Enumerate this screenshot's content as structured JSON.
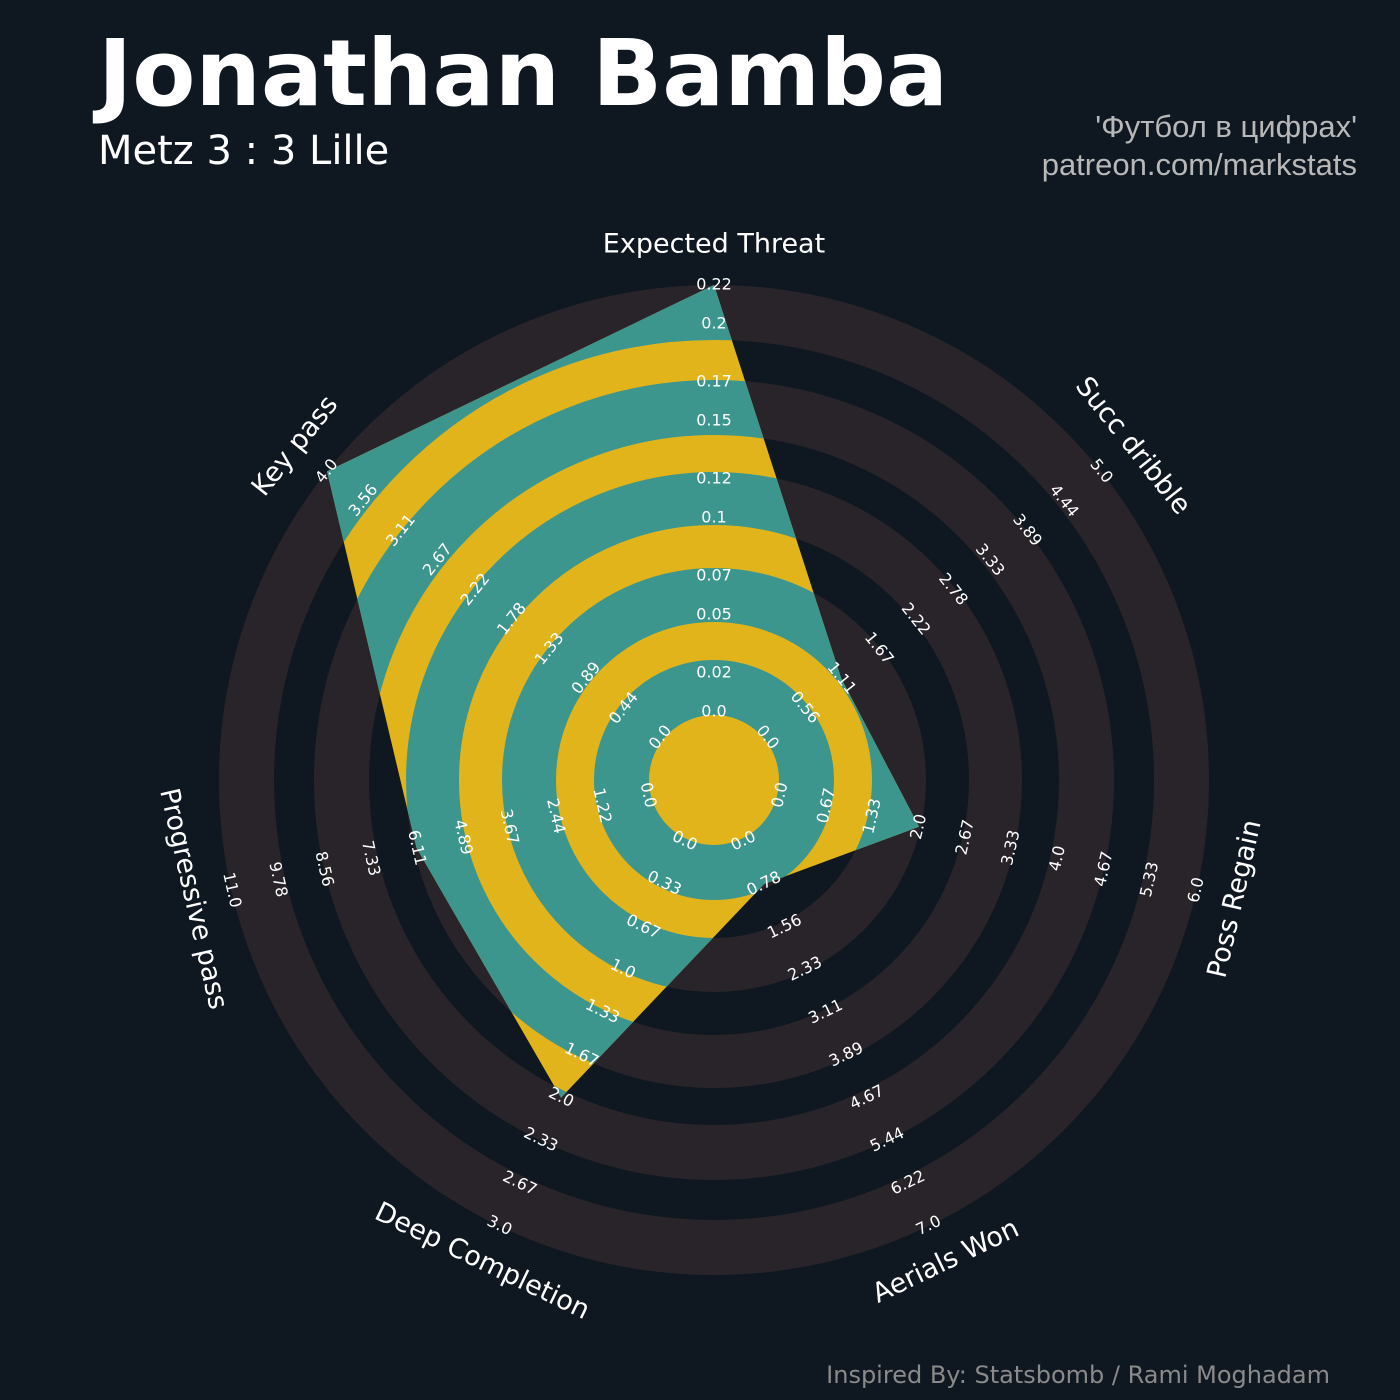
{
  "chart_data": {
    "type": "radar",
    "title": "Jonathan Bamba",
    "subtitle": "Metz 3 : 3 Lille",
    "credits": [
      "'Футбол в цифрах'",
      "patreon.com/markstats"
    ],
    "footer": "Inspired By: Statsbomb / Rami Moghadam",
    "categories": [
      "Expected Threat",
      "Succ dribble",
      "Poss Regain",
      "Aerials Won",
      "Deep Completion",
      "Progressive pass",
      "Key pass"
    ],
    "values": [
      0.22,
      1.11,
      2,
      0.78,
      2,
      6.11,
      4
    ],
    "axis_ticks": [
      [
        {
          "value": 0,
          "label": "0.0"
        },
        0.02,
        0.05,
        0.07,
        0.1,
        0.12,
        0.15,
        0.17,
        0.2,
        0.22
      ],
      [
        {
          "value": 0,
          "label": "0.0"
        },
        0.56,
        1.11,
        1.67,
        2.22,
        2.78,
        3.33,
        3.89,
        4.44,
        {
          "value": 5,
          "label": "5.0"
        }
      ],
      [
        {
          "value": 0,
          "label": "0.0"
        },
        0.67,
        1.33,
        {
          "value": 2,
          "label": "2.0"
        },
        2.67,
        3.33,
        {
          "value": 4,
          "label": "4.0"
        },
        4.67,
        5.33,
        {
          "value": 6,
          "label": "6.0"
        }
      ],
      [
        {
          "value": 0,
          "label": "0.0"
        },
        0.78,
        1.56,
        2.33,
        3.11,
        3.89,
        4.67,
        5.44,
        6.22,
        {
          "value": 7,
          "label": "7.0"
        }
      ],
      [
        {
          "value": 0,
          "label": "0.0"
        },
        0.33,
        0.67,
        {
          "value": 1,
          "label": "1.0"
        },
        1.33,
        1.67,
        {
          "value": 2,
          "label": "2.0"
        },
        2.33,
        2.67,
        {
          "value": 3,
          "label": "3.0"
        }
      ],
      [
        {
          "value": 0,
          "label": "0.0"
        },
        1.22,
        2.44,
        3.67,
        4.89,
        6.11,
        7.33,
        8.56,
        9.78,
        {
          "value": 11,
          "label": "11.0"
        }
      ],
      [
        {
          "value": 0,
          "label": "0.0"
        },
        0.44,
        0.89,
        1.33,
        1.78,
        2.22,
        2.67,
        3.11,
        3.56,
        {
          "value": 4,
          "label": "4.0"
        }
      ]
    ],
    "color": "#3d968e",
    "alt_color": "#e2b41b"
  }
}
